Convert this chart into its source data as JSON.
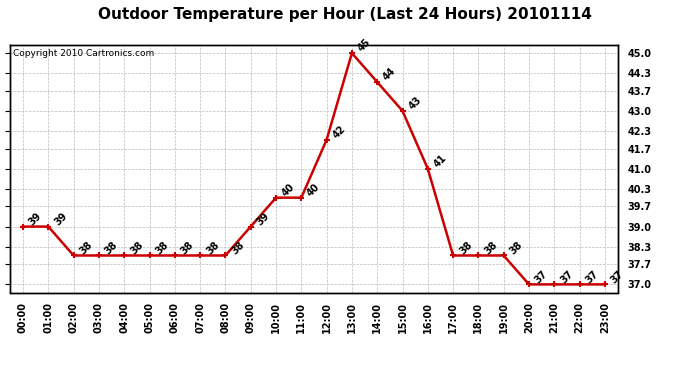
{
  "title": "Outdoor Temperature per Hour (Last 24 Hours) 20101114",
  "copyright": "Copyright 2010 Cartronics.com",
  "hours": [
    "00:00",
    "01:00",
    "02:00",
    "03:00",
    "04:00",
    "05:00",
    "06:00",
    "07:00",
    "08:00",
    "09:00",
    "10:00",
    "11:00",
    "12:00",
    "13:00",
    "14:00",
    "15:00",
    "16:00",
    "17:00",
    "18:00",
    "19:00",
    "20:00",
    "21:00",
    "22:00",
    "23:00"
  ],
  "temperatures": [
    39,
    39,
    38,
    38,
    38,
    38,
    38,
    38,
    38,
    39,
    40,
    40,
    42,
    45,
    44,
    43,
    41,
    38,
    38,
    38,
    37,
    37,
    37,
    37
  ],
  "line_color": "#cc0000",
  "marker_color": "#cc0000",
  "bg_color": "#ffffff",
  "grid_color": "#bbbbbb",
  "ylim_min": 36.72,
  "ylim_max": 45.28,
  "yticks": [
    37.0,
    37.7,
    38.3,
    39.0,
    39.7,
    40.3,
    41.0,
    41.7,
    42.3,
    43.0,
    43.7,
    44.3,
    45.0
  ],
  "ytick_labels": [
    "37.0",
    "37.7",
    "38.3",
    "39.0",
    "39.7",
    "40.3",
    "41.0",
    "41.7",
    "42.3",
    "43.0",
    "43.7",
    "44.3",
    "45.0"
  ],
  "title_fontsize": 11,
  "copyright_fontsize": 6.5,
  "annotation_fontsize": 7,
  "tick_fontsize": 7
}
